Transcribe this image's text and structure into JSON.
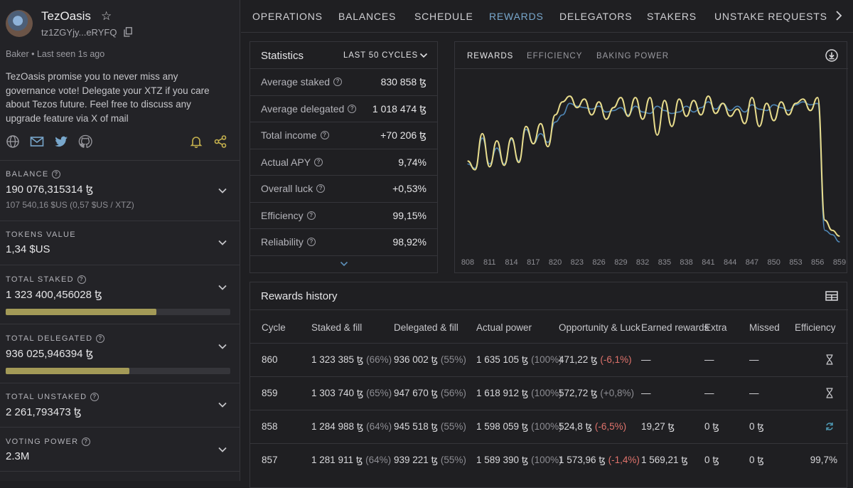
{
  "baker": {
    "name": "TezOasis",
    "address": "tz1ZGYjy...eRYFQ",
    "status": "Baker • Last seen 1s ago",
    "bio": "TezOasis promise you to never miss any governance vote! Delegate your XTZ if you care about Tezos future. Feel free to discuss any upgrade feature via X of mail",
    "social": [
      "globe-icon",
      "mail-icon",
      "twitter-icon",
      "github-icon"
    ]
  },
  "sidebar": {
    "balance": {
      "label": "BALANCE",
      "value": "190 076,315314 ꜩ",
      "sub": "107 540,16 $US (0,57 $US / XTZ)"
    },
    "tokens": {
      "label": "TOKENS VALUE",
      "value": "1,34 $US"
    },
    "staked": {
      "label": "TOTAL STAKED",
      "value": "1 323 400,456028 ꜩ",
      "fill": 0.67
    },
    "delegated": {
      "label": "TOTAL DELEGATED",
      "value": "936 025,946394 ꜩ",
      "fill": 0.55
    },
    "unstaked": {
      "label": "TOTAL UNSTAKED",
      "value": "2 261,793473 ꜩ"
    },
    "voting": {
      "label": "VOTING POWER",
      "value": "2.3M"
    }
  },
  "nav": {
    "tabs": [
      "OPERATIONS",
      "BALANCES",
      "SCHEDULE",
      "REWARDS",
      "DELEGATORS",
      "STAKERS",
      "UNSTAKE REQUESTS"
    ],
    "active": "REWARDS"
  },
  "statistics": {
    "title": "Statistics",
    "period": "LAST 50 CYCLES",
    "rows": [
      {
        "label": "Average staked",
        "value": "830 858 ꜩ"
      },
      {
        "label": "Average delegated",
        "value": "1 018 474 ꜩ"
      },
      {
        "label": "Total income",
        "value": "+70 206 ꜩ"
      },
      {
        "label": "Actual APY",
        "value": "9,74%"
      },
      {
        "label": "Overall luck",
        "value": "+0,53%"
      },
      {
        "label": "Efficiency",
        "value": "99,15%"
      },
      {
        "label": "Reliability",
        "value": "98,92%"
      }
    ]
  },
  "chart_tabs": [
    "REWARDS",
    "EFFICIENCY",
    "BAKING POWER"
  ],
  "colors": {
    "accent": "#78a7cc",
    "series_yellow": "#e8dc8c",
    "series_blue": "#4f86b5",
    "negative": "#e0736c",
    "bar": "#a39a57"
  },
  "chart_data": {
    "type": "line",
    "x": [
      808,
      809,
      810,
      811,
      812,
      813,
      814,
      815,
      816,
      817,
      818,
      819,
      820,
      821,
      822,
      823,
      824,
      825,
      826,
      827,
      828,
      829,
      830,
      831,
      832,
      833,
      834,
      835,
      836,
      837,
      838,
      839,
      840,
      841,
      842,
      843,
      844,
      845,
      846,
      847,
      848,
      849,
      850,
      851,
      852,
      853,
      854,
      855,
      856,
      857,
      858,
      859
    ],
    "x_ticks": [
      "808",
      "811",
      "814",
      "817",
      "820",
      "823",
      "826",
      "829",
      "832",
      "835",
      "838",
      "841",
      "844",
      "847",
      "850",
      "853",
      "856",
      "859"
    ],
    "series": [
      {
        "values": [
          54,
          51,
          72,
          54,
          65,
          54,
          71,
          56,
          78,
          68,
          75,
          69,
          83,
          88,
          96,
          94,
          93,
          92,
          94,
          90,
          91,
          93,
          88,
          94,
          90,
          89,
          94,
          91,
          89,
          90,
          94,
          90,
          93,
          97,
          92,
          96,
          91,
          94,
          90,
          95,
          92,
          91,
          95,
          93,
          91,
          95,
          97,
          95,
          96,
          8,
          5,
          0
        ]
      },
      {
        "values": [
          56,
          50,
          75,
          52,
          70,
          53,
          72,
          55,
          80,
          68,
          82,
          66,
          88,
          97,
          101,
          93,
          99,
          88,
          97,
          85,
          93,
          100,
          87,
          100,
          85,
          100,
          74,
          98,
          80,
          99,
          87,
          98,
          88,
          101,
          89,
          96,
          87,
          92,
          82,
          100,
          80,
          96,
          84,
          97,
          88,
          96,
          99,
          91,
          100,
          15,
          8,
          4
        ]
      }
    ]
  },
  "history": {
    "title": "Rewards history",
    "columns": [
      "Cycle",
      "Staked & fill",
      "Delegated & fill",
      "Actual power",
      "Opportunity & Luck",
      "Earned rewards",
      "Extra",
      "Missed",
      "Efficiency"
    ],
    "rows": [
      {
        "cycle": "860",
        "staked": "1 323 385 ꜩ",
        "staked_pct": "(66%)",
        "delegated": "936 002 ꜩ",
        "delegated_pct": "(55%)",
        "power": "1 635 105 ꜩ",
        "power_pct": "(100%)",
        "opp": "471,22 ꜩ",
        "luck": "(-6,1%)",
        "luck_neg": true,
        "earned": "—",
        "extra": "—",
        "missed": "—",
        "eff": "",
        "state": "hourglass-icon"
      },
      {
        "cycle": "859",
        "staked": "1 303 740 ꜩ",
        "staked_pct": "(65%)",
        "delegated": "947 670 ꜩ",
        "delegated_pct": "(56%)",
        "power": "1 618 912 ꜩ",
        "power_pct": "(100%)",
        "opp": "572,72 ꜩ",
        "luck": "(+0,8%)",
        "luck_neg": false,
        "earned": "—",
        "extra": "—",
        "missed": "—",
        "eff": "",
        "state": "hourglass-icon"
      },
      {
        "cycle": "858",
        "staked": "1 284 988 ꜩ",
        "staked_pct": "(64%)",
        "delegated": "945 518 ꜩ",
        "delegated_pct": "(55%)",
        "power": "1 598 059 ꜩ",
        "power_pct": "(100%)",
        "opp": "524,8 ꜩ",
        "luck": "(-6,5%)",
        "luck_neg": true,
        "earned": "19,27 ꜩ",
        "extra": "0 ꜩ",
        "missed": "0 ꜩ",
        "eff": "",
        "state": "sync-icon"
      },
      {
        "cycle": "857",
        "staked": "1 281 911 ꜩ",
        "staked_pct": "(64%)",
        "delegated": "939 221 ꜩ",
        "delegated_pct": "(55%)",
        "power": "1 589 390 ꜩ",
        "power_pct": "(100%)",
        "opp": "1 573,96 ꜩ",
        "luck": "(-1,4%)",
        "luck_neg": true,
        "earned": "1 569,21 ꜩ",
        "extra": "0 ꜩ",
        "missed": "0 ꜩ",
        "eff": "99,7%",
        "state": ""
      }
    ]
  }
}
